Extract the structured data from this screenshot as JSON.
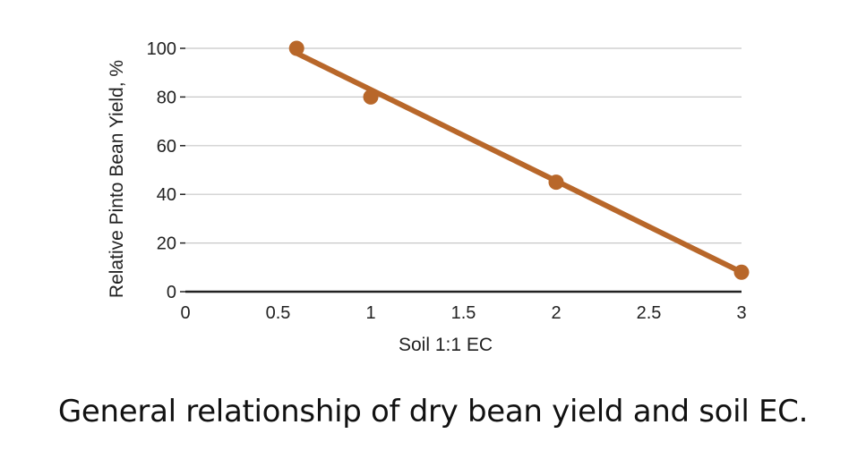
{
  "caption": "General relationship of dry bean yield and soil EC.",
  "chart_data": {
    "type": "scatter",
    "xlabel": "Soil 1:1 EC",
    "ylabel": "Relative Pinto Bean Yield, %",
    "xlim": [
      0,
      3
    ],
    "ylim": [
      0,
      100
    ],
    "x_ticks": [
      "0",
      "0.5",
      "1",
      "1.5",
      "2",
      "2.5",
      "3"
    ],
    "y_ticks": [
      "0",
      "20",
      "40",
      "60",
      "80",
      "100"
    ],
    "grid": "horizontal",
    "points": [
      {
        "x": 0.6,
        "y": 100
      },
      {
        "x": 1.0,
        "y": 80
      },
      {
        "x": 2.0,
        "y": 45
      },
      {
        "x": 3.0,
        "y": 8
      }
    ],
    "trend_line": {
      "x": [
        0.6,
        3.0
      ],
      "y": [
        98,
        8
      ]
    },
    "colors": {
      "series": "#b8672a",
      "grid": "#c8c8c8",
      "axis": "#222222"
    }
  }
}
